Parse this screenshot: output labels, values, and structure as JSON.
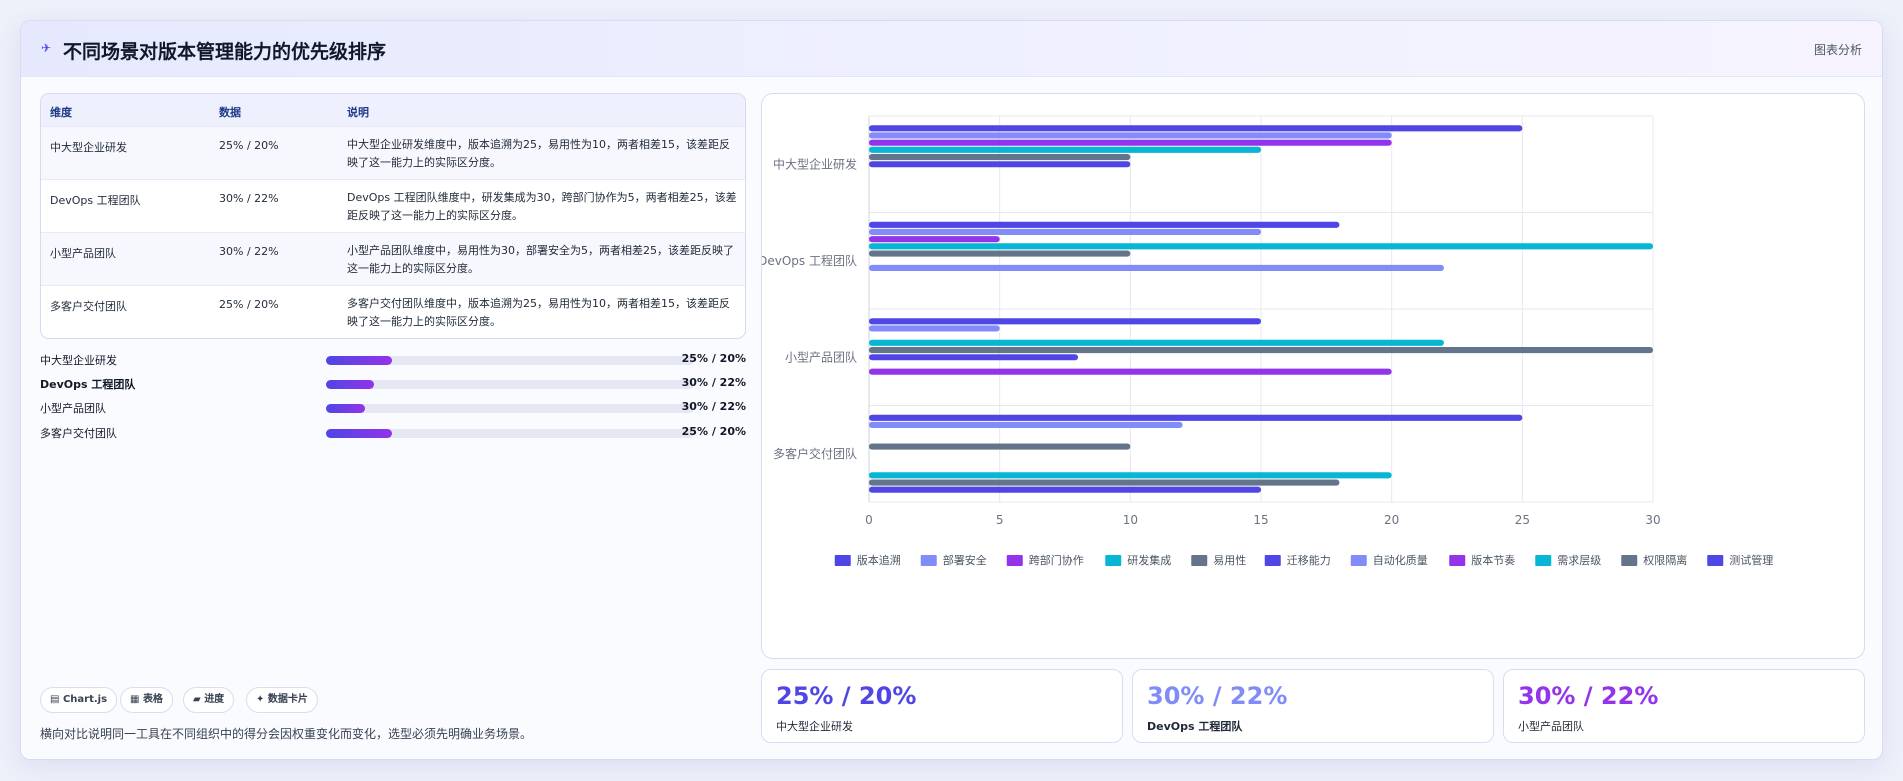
{
  "header": {
    "icon": "✈",
    "title": "不同场景对版本管理能力的优先级排序",
    "tag": "图表分析"
  },
  "table": {
    "columns": [
      "维度",
      "数据",
      "说明"
    ],
    "rows": [
      {
        "dim": "中大型企业研发",
        "data": "25% / 20%",
        "desc": "中大型企业研发维度中，版本追溯为25，易用性为10，两者相差15，该差距反映了这一能力上的实际区分度。"
      },
      {
        "dim": "DevOps 工程团队",
        "data": "30% / 22%",
        "desc": "DevOps 工程团队维度中，研发集成为30，跨部门协作为5，两者相差25，该差距反映了这一能力上的实际区分度。"
      },
      {
        "dim": "小型产品团队",
        "data": "30% / 22%",
        "desc": "小型产品团队维度中，易用性为30，部署安全为5，两者相差25，该差距反映了这一能力上的实际区分度。"
      },
      {
        "dim": "多客户交付团队",
        "data": "25% / 20%",
        "desc": "多客户交付团队维度中，版本追溯为25，易用性为10，两者相差15，该差距反映了这一能力上的实际区分度。"
      }
    ]
  },
  "progress": [
    {
      "label": "中大型企业研发",
      "value": "25% / 20%",
      "fraction": 0.18
    },
    {
      "label": "DevOps 工程团队",
      "value": "30% / 22%",
      "fraction": 0.13
    },
    {
      "label": "小型产品团队",
      "value": "30% / 22%",
      "fraction": 0.105
    },
    {
      "label": "多客户交付团队",
      "value": "25% / 20%",
      "fraction": 0.18
    }
  ],
  "chips": [
    {
      "icon": "▤",
      "label": "Chart.js"
    },
    {
      "icon": "▦",
      "label": "表格"
    },
    {
      "icon": "▰",
      "label": "进度"
    },
    {
      "icon": "✦",
      "label": "数据卡片"
    }
  ],
  "footer_note": "横向对比说明同一工具在不同组织中的得分会因权重变化而变化，选型必须先明确业务场景。",
  "stats": [
    {
      "value": "25% / 20%",
      "label": "中大型企业研发",
      "color": "#4f46e5"
    },
    {
      "value": "30% / 22%",
      "label": "DevOps 工程团队",
      "color": "#818cf8"
    },
    {
      "value": "30% / 22%",
      "label": "小型产品团队",
      "color": "#9333ea"
    }
  ],
  "chart_data": {
    "type": "bar",
    "orientation": "horizontal",
    "categories": [
      "中大型企业研发",
      "DevOps 工程团队",
      "小型产品团队",
      "多客户交付团队"
    ],
    "xlim": [
      0,
      30
    ],
    "xticks": [
      0,
      5,
      10,
      15,
      20,
      25,
      30
    ],
    "grid": true,
    "legend_position": "bottom",
    "series": [
      {
        "name": "版本追溯",
        "color": "#4f46e5",
        "values": [
          25,
          18,
          15,
          25
        ]
      },
      {
        "name": "部署安全",
        "color": "#818cf8",
        "values": [
          20,
          15,
          5,
          12
        ]
      },
      {
        "name": "跨部门协作",
        "color": "#9333ea",
        "values": [
          20,
          5,
          0,
          0
        ]
      },
      {
        "name": "研发集成",
        "color": "#06b6d4",
        "values": [
          15,
          30,
          22,
          0
        ]
      },
      {
        "name": "易用性",
        "color": "#64748b",
        "values": [
          10,
          10,
          30,
          10
        ]
      },
      {
        "name": "迁移能力",
        "color": "#4f46e5",
        "values": [
          10,
          0,
          8,
          0
        ]
      },
      {
        "name": "自动化质量",
        "color": "#818cf8",
        "values": [
          0,
          22,
          0,
          0
        ]
      },
      {
        "name": "版本节奏",
        "color": "#9333ea",
        "values": [
          0,
          0,
          20,
          0
        ]
      },
      {
        "name": "需求层级",
        "color": "#06b6d4",
        "values": [
          0,
          0,
          0,
          20
        ]
      },
      {
        "name": "权限隔离",
        "color": "#64748b",
        "values": [
          0,
          0,
          0,
          18
        ]
      },
      {
        "name": "测试管理",
        "color": "#4f46e5",
        "values": [
          0,
          0,
          0,
          15
        ]
      }
    ]
  }
}
